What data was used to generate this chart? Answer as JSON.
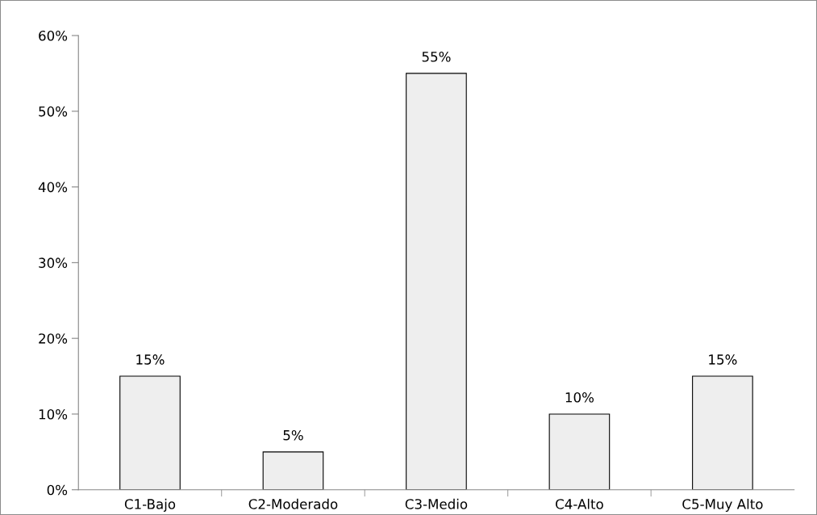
{
  "chart_data": {
    "type": "bar",
    "categories": [
      "C1-Bajo",
      "C2-Moderado",
      "C3-Medio",
      "C4-Alto",
      "C5-Muy Alto"
    ],
    "values": [
      15,
      5,
      55,
      10,
      15
    ],
    "value_labels": [
      "15%",
      "5%",
      "55%",
      "10%",
      "15%"
    ],
    "color": "#eeeeee",
    "ylim": [
      0,
      60
    ],
    "yticks": [
      {
        "value": 0,
        "label": "0%"
      },
      {
        "value": 10,
        "label": "10%"
      },
      {
        "value": 20,
        "label": "20%"
      },
      {
        "value": 30,
        "label": "30%"
      },
      {
        "value": 40,
        "label": "40%"
      },
      {
        "value": 50,
        "label": "50%"
      },
      {
        "value": 60,
        "label": "60%"
      }
    ],
    "grid": false,
    "legend": false
  }
}
